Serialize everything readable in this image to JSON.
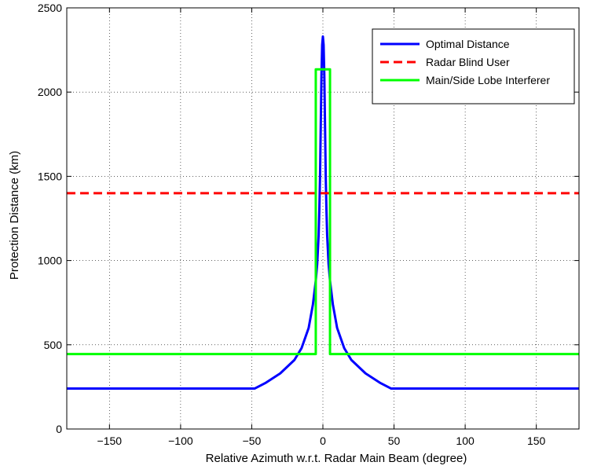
{
  "chart_data": {
    "type": "line",
    "xlabel": "Relative Azimuth w.r.t. Radar Main Beam (degree)",
    "ylabel": "Protection Distance (km)",
    "xlim": [
      -180,
      180
    ],
    "ylim": [
      0,
      2500
    ],
    "xticks": [
      -150,
      -100,
      -50,
      0,
      50,
      100,
      150
    ],
    "xtick_labels": [
      "−150",
      "−100",
      "−50",
      "0",
      "50",
      "100",
      "150"
    ],
    "yticks": [
      0,
      500,
      1000,
      1500,
      2000,
      2500
    ],
    "ytick_labels": [
      "0",
      "500",
      "1000",
      "1500",
      "2000",
      "2500"
    ],
    "grid": true,
    "legend_position": "top-right",
    "series": [
      {
        "name": "Optimal Distance",
        "color": "#0000ff",
        "style": "solid",
        "x": [
          -180,
          -48,
          -40,
          -30,
          -20,
          -15,
          -10,
          -7,
          -5,
          -4,
          -3,
          -2.5,
          -2,
          -1.5,
          -1,
          -0.5,
          0,
          0.5,
          1,
          1.5,
          2,
          2.5,
          3,
          4,
          5,
          7,
          10,
          15,
          20,
          30,
          40,
          48,
          180
        ],
        "y": [
          240,
          240,
          275,
          330,
          410,
          480,
          600,
          740,
          880,
          980,
          1150,
          1300,
          1500,
          1800,
          2100,
          2280,
          2330,
          2280,
          2100,
          1800,
          1500,
          1300,
          1150,
          980,
          880,
          740,
          600,
          480,
          410,
          330,
          275,
          240,
          240
        ]
      },
      {
        "name": "Radar Blind User",
        "color": "#ff0000",
        "style": "dashed",
        "x": [
          -180,
          180
        ],
        "y": [
          1400,
          1400
        ]
      },
      {
        "name": "Main/Side Lobe Interferer",
        "color": "#00ff00",
        "style": "solid",
        "x": [
          -180,
          -5,
          -5,
          5,
          5,
          180
        ],
        "y": [
          445,
          445,
          2135,
          2135,
          445,
          445
        ]
      }
    ]
  }
}
